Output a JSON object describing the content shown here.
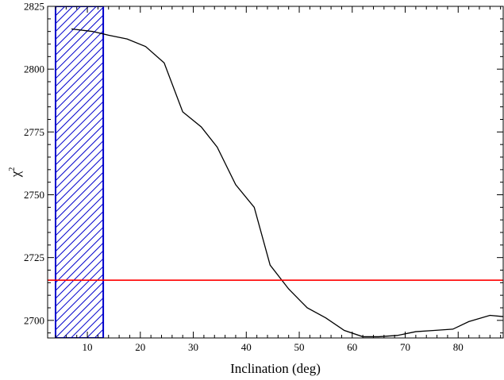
{
  "chart_data": {
    "type": "line",
    "title": "",
    "xlabel": "Inclination (deg)",
    "ylabel": "χ",
    "ylabel_superscript": "2",
    "xlim": [
      2.5,
      88.5
    ],
    "ylim": [
      2693,
      2825
    ],
    "x_ticks": [
      10,
      20,
      30,
      40,
      50,
      60,
      70,
      80
    ],
    "y_ticks": [
      2700,
      2725,
      2750,
      2775,
      2800,
      2825
    ],
    "x_minor_step": 2,
    "y_minor_step": 5,
    "grid": false,
    "series": [
      {
        "color": "#000000",
        "x": [
          7,
          11,
          14,
          17.5,
          21,
          24.5,
          28,
          31.5,
          34.5,
          38,
          41.5,
          44.5,
          48,
          51.5,
          55,
          58.5,
          62,
          65,
          68.5,
          72,
          75.5,
          79,
          82,
          86,
          88.5
        ],
        "y": [
          2816,
          2815,
          2813.5,
          2812,
          2809,
          2802.5,
          2783,
          2777,
          2769,
          2754,
          2745,
          2722,
          2712.5,
          2705,
          2701,
          2696,
          2693.5,
          2693.5,
          2694,
          2695.5,
          2696,
          2696.5,
          2699.5,
          2702,
          2701.5
        ]
      }
    ],
    "horizontal_line": {
      "y": 2716,
      "color": "#ff0000"
    },
    "shaded_band": {
      "x_range": [
        4,
        13
      ],
      "color": "#0000cc",
      "pattern": "diagonal-hatch"
    }
  }
}
